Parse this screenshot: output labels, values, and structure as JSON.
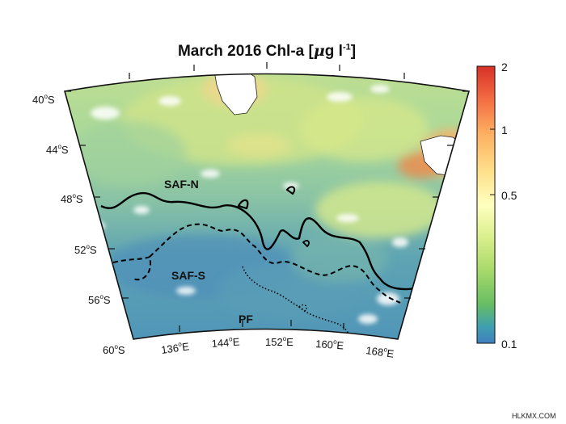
{
  "title": {
    "prefix": "March 2016 Chl-a [",
    "mu": "μ",
    "g": "g l",
    "exponent": "-1",
    "suffix": "]"
  },
  "map": {
    "projection": "conic",
    "lat_labels": [
      {
        "deg": "40",
        "hem": "S"
      },
      {
        "deg": "44",
        "hem": "S"
      },
      {
        "deg": "48",
        "hem": "S"
      },
      {
        "deg": "52",
        "hem": "S"
      },
      {
        "deg": "56",
        "hem": "S"
      },
      {
        "deg": "60",
        "hem": "S"
      }
    ],
    "lon_labels": [
      {
        "deg": "136",
        "hem": "E"
      },
      {
        "deg": "144",
        "hem": "E"
      },
      {
        "deg": "152",
        "hem": "E"
      },
      {
        "deg": "160",
        "hem": "E"
      },
      {
        "deg": "168",
        "hem": "E"
      }
    ],
    "fronts": [
      {
        "label": "SAF-N",
        "style": "solid"
      },
      {
        "label": "SAF-S",
        "style": "dashed"
      },
      {
        "label": "PF",
        "style": "dotted"
      }
    ],
    "land_labels": [],
    "colors": {
      "low": "#3f7fbf",
      "mid": "#e8f08c",
      "high": "#d73027",
      "land": "#ffffff",
      "front_line": "#000000"
    }
  },
  "colorbar": {
    "scale": "log",
    "ticks": [
      "2",
      "1",
      "0.5",
      "0.1"
    ],
    "colormap": [
      "#d73027",
      "#f46d43",
      "#fdae61",
      "#fee08b",
      "#ffffbf",
      "#d9ef8b",
      "#a6d96a",
      "#66bd63",
      "#3f9fb0",
      "#3f7fbf"
    ]
  },
  "watermark": "HLKMX.COM"
}
